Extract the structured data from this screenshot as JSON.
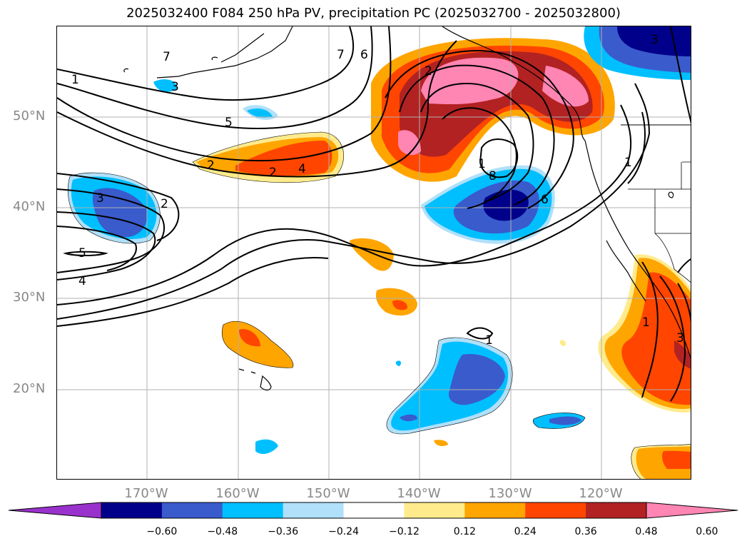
{
  "title": "2025032400 F084 250 hPa PV, precipitation PC (2025032700 - 2025032800)",
  "lat_labels": [
    "50°N",
    "40°N",
    "30°N",
    "20°N"
  ],
  "lon_labels": [
    "170°W",
    "160°W",
    "150°W",
    "140°W",
    "130°W",
    "120°W"
  ],
  "contour_labels": [
    "7",
    "1",
    "5",
    "3",
    "2",
    "4",
    "2",
    "3",
    "7",
    "6",
    "2",
    "2",
    "8",
    "6",
    "1",
    "3",
    "5",
    "4",
    "1",
    "1",
    "3",
    "1"
  ],
  "colorbar": {
    "ticks": [
      "−0.60",
      "−0.48",
      "−0.36",
      "−0.24",
      "−0.12",
      "0.12",
      "0.24",
      "0.36",
      "0.48",
      "0.60"
    ],
    "colors": [
      "#9932cc",
      "#00008b",
      "#3a5bcc",
      "#00bfff",
      "#b0e0fa",
      "#ffffff",
      "#ffeb8c",
      "#ffa500",
      "#ff4500",
      "#b22222",
      "#ff85b3"
    ]
  }
}
